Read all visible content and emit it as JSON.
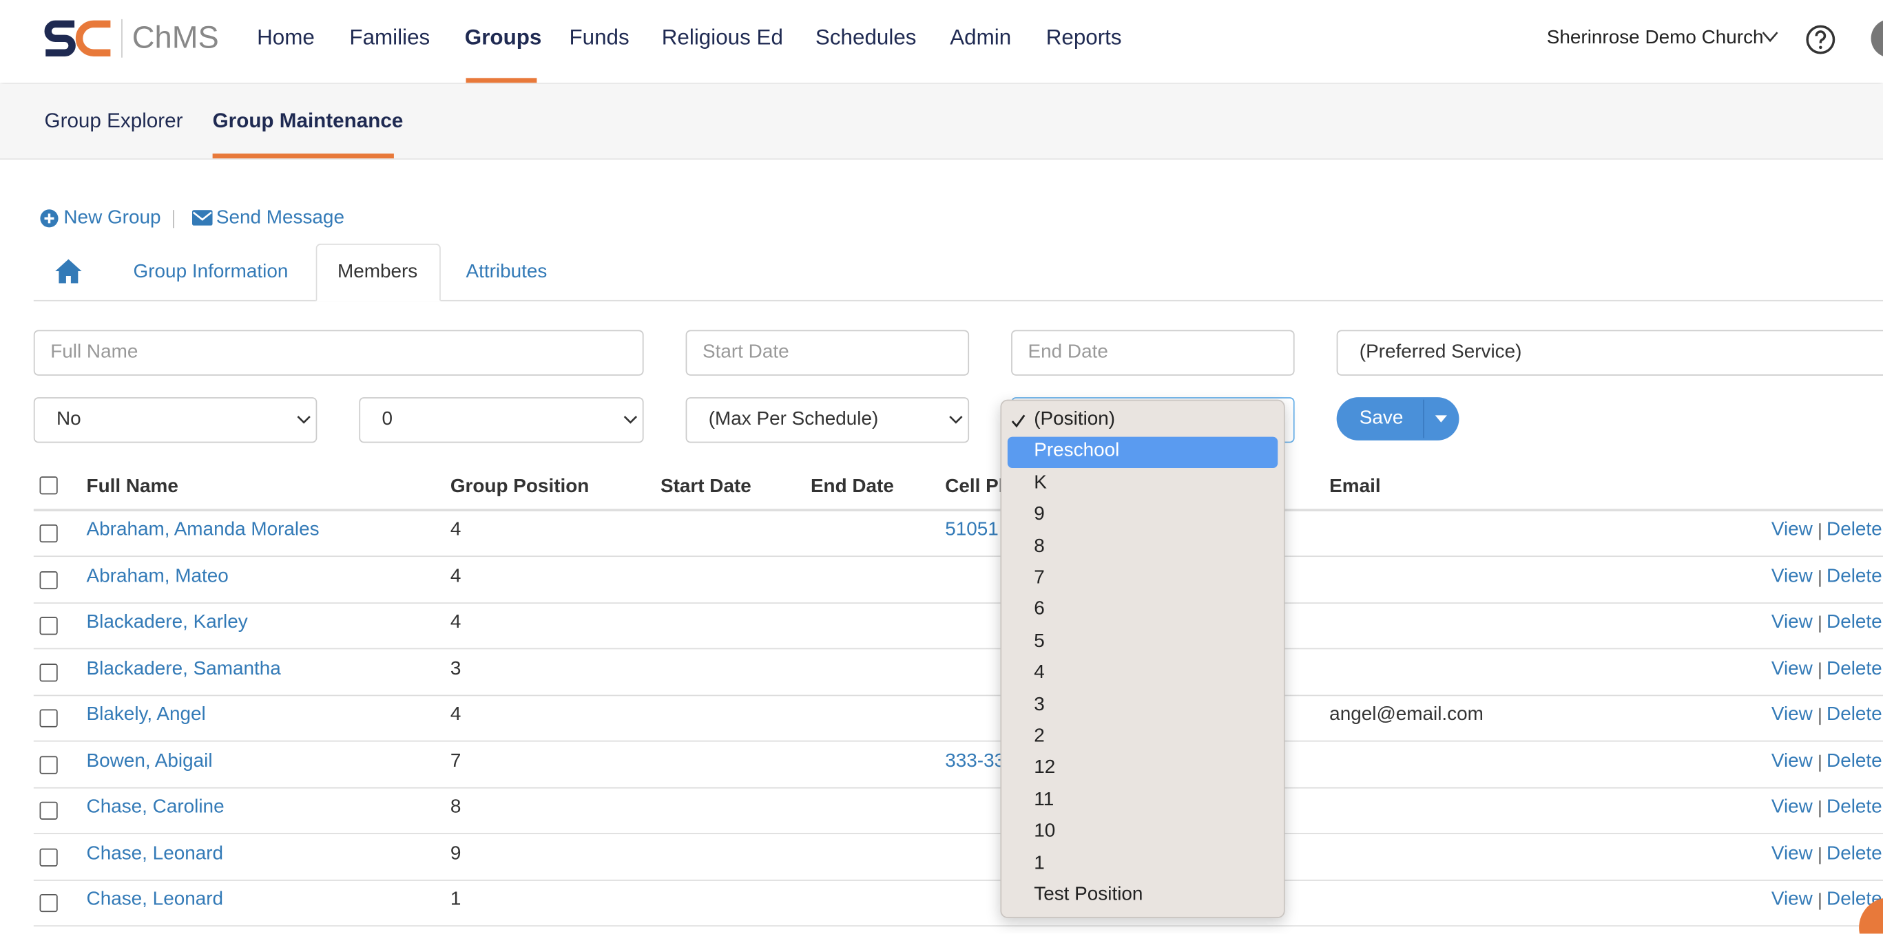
{
  "nav": {
    "logo": "ChMS",
    "items": [
      "Home",
      "Families",
      "Groups",
      "Funds",
      "Religious Ed",
      "Schedules",
      "Admin",
      "Reports"
    ],
    "church": "Sherinrose Demo Church"
  },
  "subnav": [
    "Group Explorer",
    "Group Maintenance"
  ],
  "actions": [
    "New Group",
    "Send Message"
  ],
  "tabs": [
    "Group Information",
    "Members",
    "Attributes"
  ],
  "filters": {
    "placeholders": [
      "Full Name",
      "Start Date",
      "End Date",
      "(Preferred Service)"
    ],
    "selects": [
      "No",
      "0",
      "(Max Per Schedule)"
    ],
    "save": "Save"
  },
  "table": {
    "columns": [
      "Full Name",
      "Group Position",
      "Start Date",
      "End Date",
      "Cell Ph",
      "Email"
    ],
    "rows": [
      {
        "name": "Abraham, Amanda Morales",
        "position": "4",
        "cell": "51051"
      },
      {
        "name": "Abraham, Mateo",
        "position": "4"
      },
      {
        "name": "Blackadere, Karley",
        "position": "4"
      },
      {
        "name": "Blackadere, Samantha",
        "position": "3"
      },
      {
        "name": "Blakely, Angel",
        "position": "4",
        "email": "angel@email.com"
      },
      {
        "name": "Bowen, Abigail",
        "position": "7",
        "cell": "333-33"
      },
      {
        "name": "Chase, Caroline",
        "position": "8"
      },
      {
        "name": "Chase, Leonard",
        "position": "9"
      },
      {
        "name": "Chase, Leonard",
        "position": "1"
      }
    ],
    "view": "View",
    "delete": "Delete"
  },
  "dropdown": {
    "options": [
      "(Position)",
      "Preschool",
      "K",
      "9",
      "8",
      "7",
      "6",
      "5",
      "4",
      "3",
      "2",
      "12",
      "11",
      "10",
      "1",
      "Test Position"
    ]
  }
}
